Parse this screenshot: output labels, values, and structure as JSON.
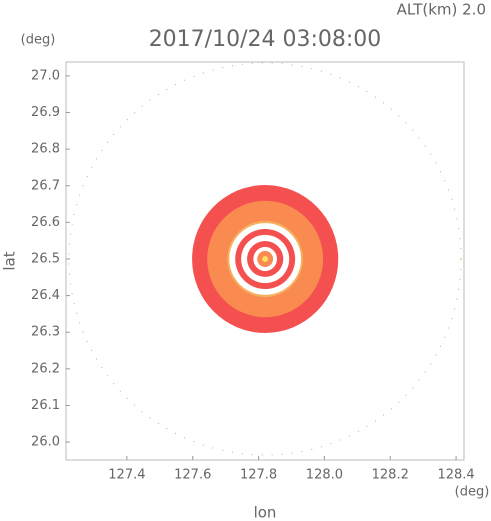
{
  "chart_data": {
    "type": "radar",
    "title": "2017/10/24 03:08:00",
    "subtitle": "ALT(km) 2.0",
    "x_label": "lon",
    "y_label": "lat",
    "x_unit": "(deg)",
    "y_unit": "(deg)",
    "xlim": [
      127.215,
      128.424
    ],
    "ylim": [
      25.951,
      27.038
    ],
    "xticks": [
      127.4,
      127.6,
      127.8,
      {
        "value": 128.0,
        "label": "128.0"
      },
      128.2,
      128.4
    ],
    "yticks": [
      {
        "value": 26.0,
        "label": "26.0"
      },
      26.1,
      26.2,
      26.3,
      26.4,
      26.5,
      26.6,
      26.7,
      26.8,
      26.9,
      {
        "value": 27.0,
        "label": "27.0"
      }
    ],
    "rings": [
      {
        "lon": 127.82,
        "lat": 26.5,
        "radius_lon": 0.222,
        "radius_lat": 0.202,
        "color": "#f55050"
      },
      {
        "lon": 127.82,
        "lat": 26.5,
        "radius_lon": 0.176,
        "radius_lat": 0.159,
        "color": "#f98a50"
      },
      {
        "lon": 127.82,
        "lat": 26.5,
        "radius_lon": 0.115,
        "radius_lat": 0.104,
        "color": "#f5b060"
      },
      {
        "lon": 127.82,
        "lat": 26.5,
        "radius_lon": 0.109,
        "radius_lat": 0.098,
        "color": "#ffffff"
      },
      {
        "lon": 127.82,
        "lat": 26.5,
        "radius_lon": 0.091,
        "radius_lat": 0.082,
        "color": "#f55050"
      },
      {
        "lon": 127.82,
        "lat": 26.5,
        "radius_lon": 0.073,
        "radius_lat": 0.066,
        "color": "#ffffff"
      },
      {
        "lon": 127.82,
        "lat": 26.5,
        "radius_lon": 0.055,
        "radius_lat": 0.049,
        "color": "#f55050"
      },
      {
        "lon": 127.82,
        "lat": 26.5,
        "radius_lon": 0.036,
        "radius_lat": 0.033,
        "color": "#ffffff"
      },
      {
        "lon": 127.82,
        "lat": 26.5,
        "radius_lon": 0.024,
        "radius_lat": 0.022,
        "color": "#f98a50"
      },
      {
        "lon": 127.82,
        "lat": 26.5,
        "radius_lon": 0.009,
        "radius_lat": 0.008,
        "color": "#ffe060"
      }
    ]
  }
}
